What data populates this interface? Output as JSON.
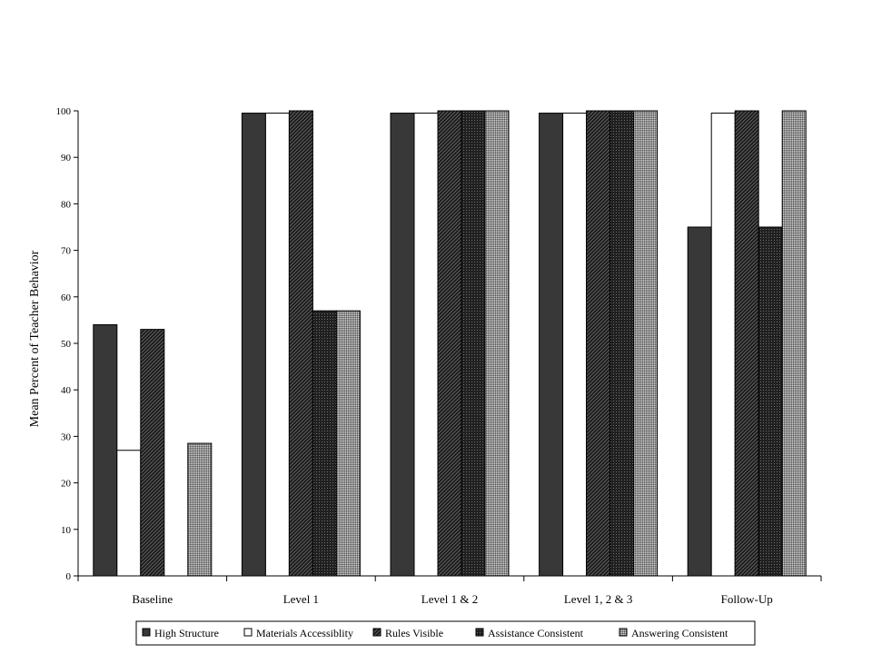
{
  "chart_data": {
    "type": "bar",
    "title": "",
    "xlabel": "",
    "ylabel": "Mean Percent of Teacher Behavior",
    "ylim": [
      0,
      100
    ],
    "yticks": [
      0,
      10,
      20,
      30,
      40,
      50,
      60,
      70,
      80,
      90,
      100
    ],
    "categories": [
      "Baseline",
      "Level 1",
      "Level 1 & 2",
      "Level 1, 2 & 3",
      "Follow-Up"
    ],
    "legend_position": "bottom",
    "grid": false,
    "series": [
      {
        "name": "High Structure",
        "values": [
          54,
          99.5,
          99.5,
          99.5,
          75
        ],
        "pattern": "solid-dark"
      },
      {
        "name": "Materials Accessiblity",
        "values": [
          27,
          99.5,
          99.5,
          99.5,
          99.5
        ],
        "pattern": "white"
      },
      {
        "name": "Rules Visible",
        "values": [
          53,
          100,
          100,
          100,
          100
        ],
        "pattern": "diagonal-hatch"
      },
      {
        "name": "Assistance Consistent",
        "values": [
          0,
          57,
          100,
          100,
          75
        ],
        "pattern": "dark-grid"
      },
      {
        "name": "Answering Consistent",
        "values": [
          28.5,
          57,
          100,
          100,
          100
        ],
        "pattern": "light-dots"
      }
    ]
  }
}
